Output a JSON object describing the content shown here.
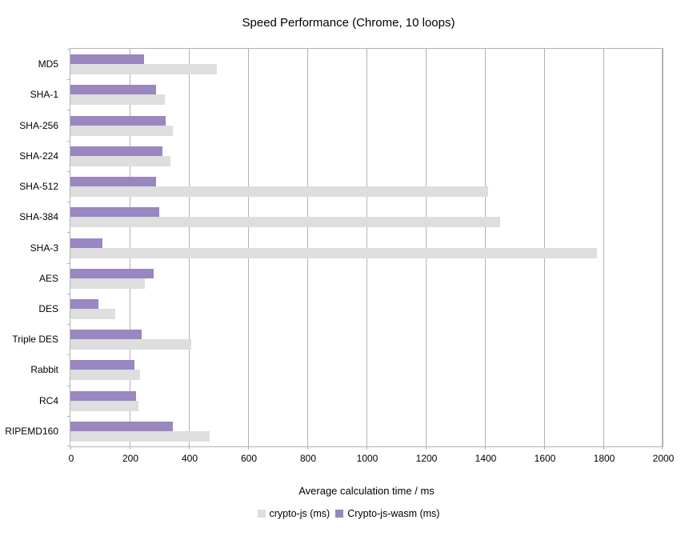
{
  "chart_data": {
    "type": "bar",
    "orientation": "horizontal",
    "title": "Speed Performance (Chrome, 10 loops)",
    "xlabel": "Average calculation time / ms",
    "ylabel": "",
    "categories": [
      "MD5",
      "SHA-1",
      "SHA-256",
      "SHA-224",
      "SHA-512",
      "SHA-384",
      "SHA-3",
      "AES",
      "DES",
      "Triple DES",
      "Rabbit",
      "RC4",
      "RIPEMD160"
    ],
    "series": [
      {
        "name": "crypto-js (ms)",
        "color": "#dedede",
        "values": [
          495,
          318,
          345,
          337,
          1410,
          1452,
          1778,
          251,
          151,
          407,
          236,
          230,
          471
        ]
      },
      {
        "name": "Crypto-js-wasm (ms)",
        "color": "#9a86c1",
        "values": [
          248,
          289,
          321,
          310,
          289,
          300,
          108,
          280,
          95,
          240,
          215,
          222,
          345
        ]
      }
    ],
    "xlim": [
      0,
      2000
    ],
    "xticks": [
      0,
      200,
      400,
      600,
      800,
      1000,
      1200,
      1400,
      1600,
      1800,
      2000
    ],
    "grid": true,
    "legend_position": "bottom",
    "colors": {
      "grid": "#b3b3b3",
      "text": "#000000",
      "background": "#ffffff"
    }
  }
}
